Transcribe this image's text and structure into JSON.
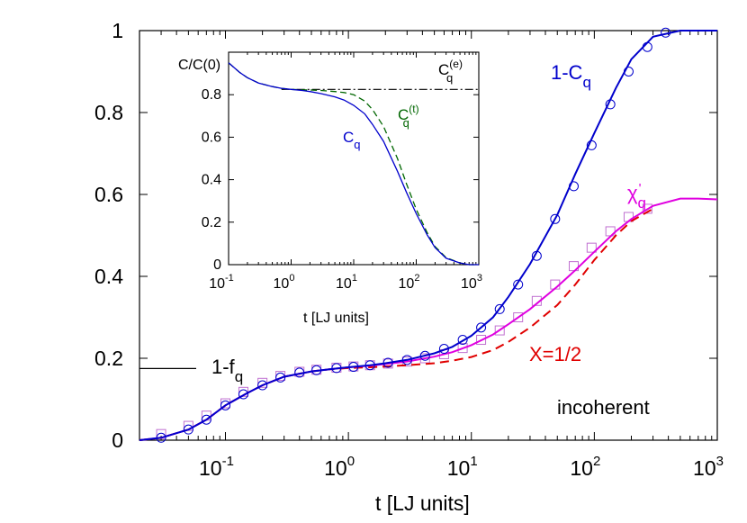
{
  "chart_data": [
    {
      "type": "line",
      "xlabel": "t [LJ units]",
      "xscale": "log",
      "xlim": [
        0.02,
        1000
      ],
      "ylim": [
        0,
        1
      ],
      "x_ticks": [
        {
          "base": "10",
          "exp": "-1"
        },
        {
          "base": "10",
          "exp": "0"
        },
        {
          "base": "10",
          "exp": "1"
        },
        {
          "base": "10",
          "exp": "2"
        },
        {
          "base": "10",
          "exp": "3"
        }
      ],
      "y_ticks": [
        "0",
        "0.2",
        "0.4",
        "0.6",
        "0.8",
        "1"
      ],
      "colors": {
        "blue": "#0000cc",
        "magenta": "#e000e0",
        "red": "#e00000",
        "green": "#006600",
        "violet": "#c070d0"
      },
      "series": [
        {
          "name": "1-Cq",
          "style": "solid",
          "x": [
            0.02,
            0.03,
            0.05,
            0.07,
            0.1,
            0.15,
            0.2,
            0.3,
            0.5,
            0.7,
            1,
            1.5,
            2,
            3,
            5,
            7,
            10,
            15,
            20,
            30,
            50,
            70,
            100,
            150,
            200,
            300,
            500,
            700,
            1000
          ],
          "y": [
            0.0,
            0.006,
            0.026,
            0.05,
            0.085,
            0.115,
            0.134,
            0.155,
            0.168,
            0.173,
            0.178,
            0.183,
            0.188,
            0.196,
            0.212,
            0.228,
            0.255,
            0.3,
            0.35,
            0.43,
            0.55,
            0.65,
            0.75,
            0.86,
            0.93,
            0.985,
            1.0,
            1.0,
            1.0
          ]
        },
        {
          "name": "1-Cq circles",
          "style": "markers",
          "x": [
            0.03,
            0.05,
            0.07,
            0.1,
            0.14,
            0.2,
            0.28,
            0.4,
            0.55,
            0.8,
            1.1,
            1.5,
            2.1,
            3,
            4.2,
            6,
            8.5,
            12,
            17,
            24,
            34,
            48,
            68,
            95,
            135,
            190,
            270,
            380
          ],
          "y": [
            0.006,
            0.026,
            0.05,
            0.085,
            0.112,
            0.134,
            0.153,
            0.165,
            0.171,
            0.176,
            0.179,
            0.183,
            0.189,
            0.196,
            0.206,
            0.223,
            0.245,
            0.275,
            0.32,
            0.38,
            0.45,
            0.54,
            0.62,
            0.72,
            0.82,
            0.9,
            0.96,
            0.995
          ]
        },
        {
          "name": "χ'q",
          "style": "solid",
          "x": [
            0.02,
            0.03,
            0.05,
            0.07,
            0.1,
            0.15,
            0.2,
            0.3,
            0.5,
            0.7,
            1,
            1.5,
            2,
            3,
            5,
            7,
            10,
            15,
            20,
            30,
            50,
            70,
            100,
            150,
            200,
            300,
            500,
            700,
            1000
          ],
          "y": [
            0.0,
            0.006,
            0.026,
            0.05,
            0.085,
            0.115,
            0.134,
            0.155,
            0.168,
            0.173,
            0.178,
            0.182,
            0.186,
            0.192,
            0.204,
            0.215,
            0.232,
            0.258,
            0.283,
            0.32,
            0.375,
            0.415,
            0.46,
            0.51,
            0.54,
            0.572,
            0.59,
            0.59,
            0.588
          ]
        },
        {
          "name": "χ'q squares",
          "style": "markers",
          "x": [
            0.03,
            0.05,
            0.07,
            0.1,
            0.14,
            0.2,
            0.28,
            0.4,
            0.55,
            0.8,
            1.1,
            1.5,
            2.1,
            3,
            4.2,
            6,
            8.5,
            12,
            17,
            24,
            34,
            48,
            68,
            95,
            135,
            190,
            270
          ],
          "y": [
            0.015,
            0.035,
            0.06,
            0.09,
            0.118,
            0.14,
            0.157,
            0.167,
            0.172,
            0.177,
            0.18,
            0.183,
            0.187,
            0.192,
            0.2,
            0.21,
            0.225,
            0.245,
            0.268,
            0.3,
            0.34,
            0.38,
            0.425,
            0.47,
            0.51,
            0.545,
            0.565
          ]
        },
        {
          "name": "X=1/2",
          "style": "dashed",
          "x": [
            0.02,
            0.03,
            0.05,
            0.07,
            0.1,
            0.15,
            0.2,
            0.3,
            0.5,
            0.7,
            1,
            1.5,
            2,
            3,
            5,
            7,
            10,
            15,
            20,
            30,
            50,
            70,
            100,
            150,
            200,
            300
          ],
          "y": [
            0.0,
            0.006,
            0.026,
            0.05,
            0.085,
            0.115,
            0.134,
            0.155,
            0.168,
            0.173,
            0.176,
            0.178,
            0.18,
            0.183,
            0.188,
            0.194,
            0.203,
            0.22,
            0.24,
            0.275,
            0.33,
            0.38,
            0.44,
            0.5,
            0.535,
            0.565
          ]
        }
      ],
      "annotations": {
        "one_minus_cq": {
          "text": "1-C",
          "sub": "q"
        },
        "chi_q": {
          "text": "χ",
          "sup": "'",
          "sub": "q"
        },
        "x_half": {
          "text": "X=1/2"
        },
        "one_minus_fq": {
          "text": "1-f",
          "sub": "q",
          "value": 0.175
        },
        "incoherent": {
          "text": "incoherent"
        }
      }
    },
    {
      "type": "line",
      "ylabel": "C/C(0)",
      "xlabel": "t [LJ units]",
      "xscale": "log",
      "xlim": [
        0.1,
        1000
      ],
      "ylim": [
        0,
        1
      ],
      "x_ticks": [
        {
          "base": "10",
          "exp": "-1"
        },
        {
          "base": "10",
          "exp": "0"
        },
        {
          "base": "10",
          "exp": "1"
        },
        {
          "base": "10",
          "exp": "2"
        },
        {
          "base": "10",
          "exp": "3"
        }
      ],
      "y_ticks": [
        "0",
        "0.2",
        "0.4",
        "0.6",
        "0.8"
      ],
      "series": [
        {
          "name": "Cq",
          "style": "solid",
          "x": [
            0.1,
            0.15,
            0.2,
            0.3,
            0.5,
            0.7,
            1,
            1.5,
            2,
            3,
            5,
            7,
            10,
            15,
            20,
            30,
            50,
            70,
            100,
            150,
            200,
            300,
            500,
            700,
            1000
          ],
          "y": [
            0.95,
            0.905,
            0.88,
            0.855,
            0.838,
            0.83,
            0.825,
            0.82,
            0.815,
            0.805,
            0.79,
            0.775,
            0.75,
            0.71,
            0.66,
            0.58,
            0.44,
            0.34,
            0.24,
            0.14,
            0.08,
            0.03,
            0.008,
            0.0,
            0.0
          ]
        },
        {
          "name": "Cq(t)",
          "style": "dashed",
          "x": [
            0.1,
            0.15,
            0.2,
            0.3,
            0.5,
            0.7,
            1,
            1.5,
            2,
            3,
            5,
            7,
            10,
            15,
            20,
            30,
            50,
            70,
            100,
            150,
            200,
            300,
            500,
            700,
            1000
          ],
          "y": [
            0.95,
            0.905,
            0.88,
            0.855,
            0.838,
            0.83,
            0.825,
            0.823,
            0.822,
            0.82,
            0.815,
            0.81,
            0.8,
            0.77,
            0.73,
            0.65,
            0.5,
            0.38,
            0.26,
            0.15,
            0.085,
            0.033,
            0.008,
            0.0,
            0.0
          ]
        },
        {
          "name": "Cq(e)",
          "style": "dash-dot",
          "x": [
            0.7,
            1000
          ],
          "y": [
            0.825,
            0.825
          ]
        }
      ],
      "annotations": {
        "cq": {
          "text": "C",
          "sub": "q"
        },
        "cq_t": {
          "text": "C",
          "sub": "q",
          "sup": "(t)"
        },
        "cq_e": {
          "text": "C",
          "sub": "q",
          "sup": "(e)"
        }
      }
    }
  ]
}
